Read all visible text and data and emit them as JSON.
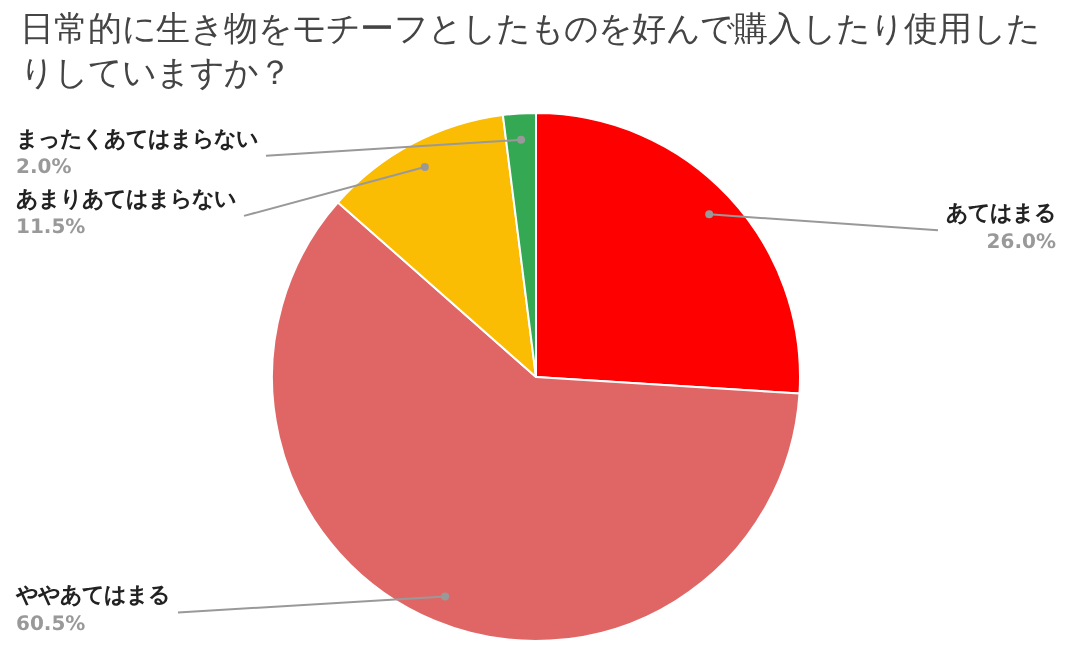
{
  "chart_data": {
    "type": "pie",
    "title": "日常的に生き物をモチーフとしたものを好んで購入したり使用したりしていますか？",
    "categories": [
      "あてはまる",
      "ややあてはまる",
      "あまりあてはまらない",
      "まったくあてはまらない"
    ],
    "values": [
      26,
      60.5,
      11.5,
      2
    ],
    "colors": [
      "#ff0000",
      "#e06666",
      "#fbbc04",
      "#34a853"
    ],
    "value_labels": [
      "26.0%",
      "60.5%",
      "11.5%",
      "2.0%"
    ]
  }
}
